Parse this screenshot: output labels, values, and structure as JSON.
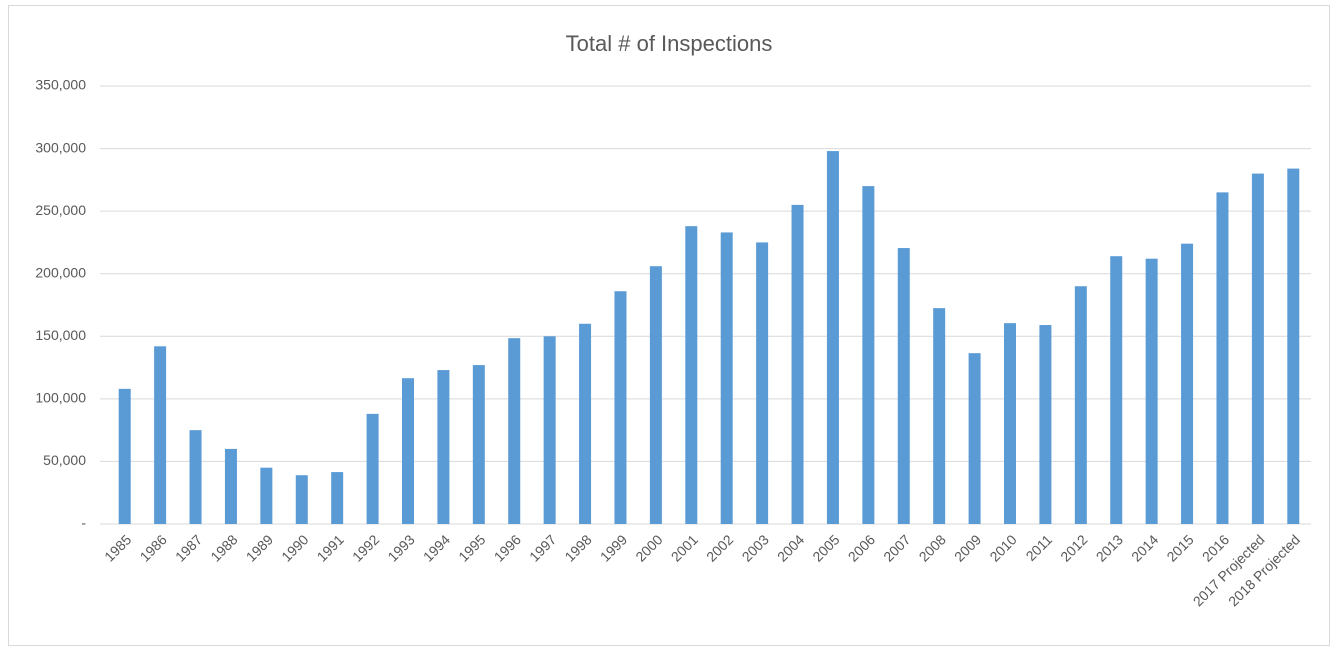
{
  "chart_data": {
    "type": "bar",
    "title": "Total # of Inspections",
    "categories": [
      "1985",
      "1986",
      "1987",
      "1988",
      "1989",
      "1990",
      "1991",
      "1992",
      "1993",
      "1994",
      "1995",
      "1996",
      "1997",
      "1998",
      "1999",
      "2000",
      "2001",
      "2002",
      "2003",
      "2004",
      "2005",
      "2006",
      "2007",
      "2008",
      "2009",
      "2010",
      "2011",
      "2012",
      "2013",
      "2014",
      "2015",
      "2016",
      "2017 Projected",
      "2018 Projected"
    ],
    "values": [
      108000,
      142000,
      75000,
      60000,
      45000,
      39000,
      41500,
      88000,
      116500,
      123000,
      127000,
      148500,
      150000,
      160000,
      186000,
      206000,
      238000,
      233000,
      225000,
      255000,
      298000,
      270000,
      220500,
      172500,
      136500,
      160500,
      159000,
      190000,
      214000,
      212000,
      224000,
      265000,
      280000,
      284000
    ],
    "color": "#5b9bd5",
    "ylim": [
      0,
      350000
    ],
    "yticks": [
      {
        "value": 0,
        "label": "-"
      },
      {
        "value": 50000,
        "label": "50,000"
      },
      {
        "value": 100000,
        "label": "100,000"
      },
      {
        "value": 150000,
        "label": "150,000"
      },
      {
        "value": 200000,
        "label": "200,000"
      },
      {
        "value": 250000,
        "label": "250,000"
      },
      {
        "value": 300000,
        "label": "300,000"
      },
      {
        "value": 350000,
        "label": "350,000"
      }
    ],
    "grid": true
  }
}
